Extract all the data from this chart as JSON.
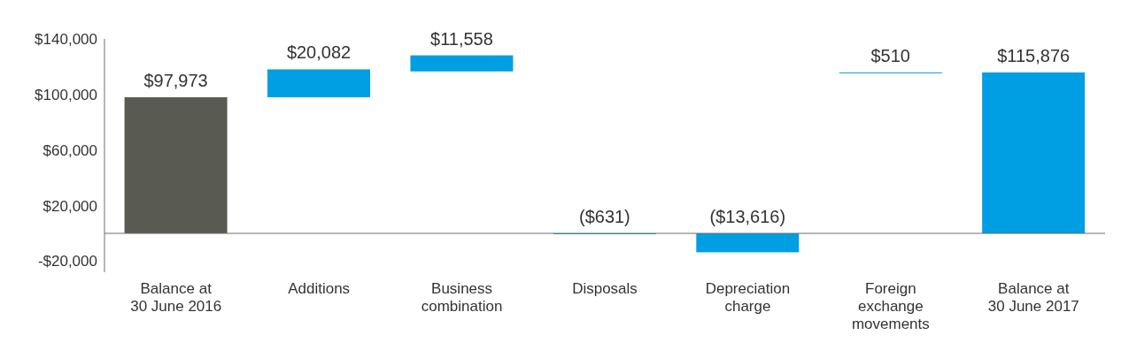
{
  "chart_data": {
    "type": "bar",
    "categories": [
      "Balance at 30 June 2016",
      "Additions",
      "Business combination",
      "Disposals",
      "Depreciation charge",
      "Foreign exchange movements",
      "Balance at 30 June 2017"
    ],
    "values": [
      97973,
      20082,
      11558,
      -631,
      -13616,
      510,
      115876
    ],
    "base": [
      0,
      97973,
      116600,
      0,
      0,
      115366,
      0
    ],
    "colors": [
      "#595a52",
      "#009fe3",
      "#009fe3",
      "#009fe3",
      "#009fe3",
      "#009fe3",
      "#009fe3"
    ],
    "value_labels": [
      "$97,973",
      "$20,082",
      "$11,558",
      "($631)",
      "($13,616)",
      "$510",
      "$115,876"
    ],
    "ylim": [
      -28000,
      140000
    ],
    "yticks": [
      {
        "value": -20000,
        "label": "-$20,000"
      },
      {
        "value": 20000,
        "label": "$20,000"
      },
      {
        "value": 60000,
        "label": "$60,000"
      },
      {
        "value": 100000,
        "label": "$100,000"
      },
      {
        "value": 140000,
        "label": "$140,000"
      }
    ],
    "ref_lines": [
      {
        "axis": "y",
        "value": 0,
        "color": "#6d6e71"
      }
    ],
    "grid": false
  }
}
